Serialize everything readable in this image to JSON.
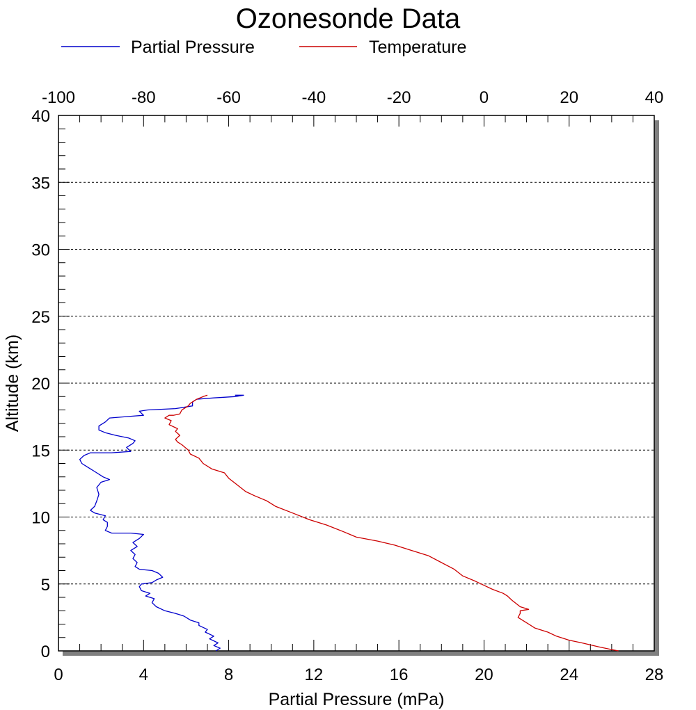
{
  "chart_data": {
    "type": "line",
    "title": "Ozonesonde Data",
    "xlabel": "Partial Pressure (mPa)",
    "ylabel": "Altitude (km)",
    "xlim": [
      0,
      28
    ],
    "x_ticks": [
      "0",
      "4",
      "8",
      "12",
      "16",
      "20",
      "24",
      "28"
    ],
    "x2lim": [
      -100,
      40
    ],
    "x2_ticks": [
      "-100",
      "-80",
      "-60",
      "-40",
      "-20",
      "0",
      "20",
      "40"
    ],
    "ylim": [
      0,
      40
    ],
    "y_ticks": [
      "0",
      "5",
      "10",
      "15",
      "20",
      "25",
      "30",
      "35",
      "40"
    ],
    "grid": "horizontal dotted",
    "legend_position": "top",
    "series": [
      {
        "name": "Partial Pressure",
        "color": "#0000cc",
        "axis": "bottom",
        "points": [
          [
            7.4,
            0.0
          ],
          [
            7.6,
            0.2
          ],
          [
            7.3,
            0.4
          ],
          [
            7.5,
            0.6
          ],
          [
            7.1,
            0.9
          ],
          [
            7.3,
            1.1
          ],
          [
            6.9,
            1.4
          ],
          [
            7.0,
            1.6
          ],
          [
            6.6,
            1.9
          ],
          [
            6.6,
            2.1
          ],
          [
            6.2,
            2.3
          ],
          [
            5.9,
            2.6
          ],
          [
            5.5,
            2.8
          ],
          [
            5.0,
            3.0
          ],
          [
            4.6,
            3.3
          ],
          [
            4.4,
            3.6
          ],
          [
            4.5,
            3.9
          ],
          [
            4.1,
            4.1
          ],
          [
            4.3,
            4.3
          ],
          [
            3.9,
            4.5
          ],
          [
            3.8,
            4.8
          ],
          [
            3.9,
            5.0
          ],
          [
            4.4,
            5.1
          ],
          [
            4.6,
            5.3
          ],
          [
            4.9,
            5.5
          ],
          [
            4.7,
            5.8
          ],
          [
            4.4,
            6.0
          ],
          [
            3.8,
            6.1
          ],
          [
            3.6,
            6.3
          ],
          [
            3.7,
            6.6
          ],
          [
            3.5,
            6.9
          ],
          [
            3.6,
            7.2
          ],
          [
            3.4,
            7.5
          ],
          [
            3.7,
            7.8
          ],
          [
            3.5,
            8.1
          ],
          [
            3.8,
            8.4
          ],
          [
            4.0,
            8.7
          ],
          [
            3.4,
            8.8
          ],
          [
            2.5,
            8.8
          ],
          [
            2.2,
            9.0
          ],
          [
            2.3,
            9.3
          ],
          [
            2.3,
            9.6
          ],
          [
            2.1,
            9.8
          ],
          [
            2.2,
            10.1
          ],
          [
            1.7,
            10.3
          ],
          [
            1.5,
            10.5
          ],
          [
            1.7,
            10.8
          ],
          [
            1.8,
            11.2
          ],
          [
            1.9,
            11.7
          ],
          [
            1.8,
            12.2
          ],
          [
            2.0,
            12.6
          ],
          [
            2.4,
            12.8
          ],
          [
            2.1,
            13.0
          ],
          [
            1.7,
            13.4
          ],
          [
            1.4,
            13.7
          ],
          [
            1.1,
            14.0
          ],
          [
            1.0,
            14.3
          ],
          [
            1.2,
            14.6
          ],
          [
            1.5,
            14.8
          ],
          [
            2.5,
            14.8
          ],
          [
            3.4,
            14.9
          ],
          [
            3.2,
            15.2
          ],
          [
            3.5,
            15.5
          ],
          [
            3.6,
            15.7
          ],
          [
            3.3,
            15.9
          ],
          [
            2.7,
            16.1
          ],
          [
            2.2,
            16.3
          ],
          [
            1.9,
            16.5
          ],
          [
            1.9,
            16.8
          ],
          [
            2.2,
            17.1
          ],
          [
            2.4,
            17.4
          ],
          [
            3.2,
            17.5
          ],
          [
            4.0,
            17.6
          ],
          [
            3.8,
            17.9
          ],
          [
            4.2,
            18.0
          ],
          [
            5.5,
            18.1
          ],
          [
            6.3,
            18.3
          ],
          [
            6.3,
            18.6
          ],
          [
            6.5,
            18.8
          ],
          [
            7.3,
            18.9
          ],
          [
            8.3,
            19.0
          ],
          [
            8.7,
            19.1
          ],
          [
            8.3,
            19.1
          ]
        ]
      },
      {
        "name": "Temperature",
        "color": "#cc0000",
        "axis": "top",
        "points": [
          [
            31.6,
            0.0
          ],
          [
            30,
            0.1
          ],
          [
            27,
            0.3
          ],
          [
            23,
            0.6
          ],
          [
            20,
            0.8
          ],
          [
            17,
            1.1
          ],
          [
            15,
            1.4
          ],
          [
            12,
            1.7
          ],
          [
            10,
            2.1
          ],
          [
            8,
            2.5
          ],
          [
            8.5,
            2.8
          ],
          [
            8.5,
            3.0
          ],
          [
            10.5,
            3.1
          ],
          [
            8.5,
            3.3
          ],
          [
            6.5,
            3.8
          ],
          [
            5.5,
            4.1
          ],
          [
            4.5,
            4.3
          ],
          [
            2,
            4.6
          ],
          [
            0,
            4.9
          ],
          [
            -2,
            5.2
          ],
          [
            -5,
            5.6
          ],
          [
            -7,
            6.1
          ],
          [
            -10,
            6.6
          ],
          [
            -13,
            7.1
          ],
          [
            -17,
            7.5
          ],
          [
            -21,
            7.9
          ],
          [
            -25,
            8.2
          ],
          [
            -30,
            8.5
          ],
          [
            -33,
            8.9
          ],
          [
            -37,
            9.4
          ],
          [
            -41,
            9.8
          ],
          [
            -45,
            10.3
          ],
          [
            -49,
            10.8
          ],
          [
            -51,
            11.2
          ],
          [
            -54,
            11.6
          ],
          [
            -56,
            11.9
          ],
          [
            -58,
            12.4
          ],
          [
            -60,
            12.9
          ],
          [
            -61,
            13.3
          ],
          [
            -64,
            13.6
          ],
          [
            -66,
            14.0
          ],
          [
            -67,
            14.4
          ],
          [
            -69,
            14.7
          ],
          [
            -69.5,
            15.0
          ],
          [
            -71,
            15.4
          ],
          [
            -72,
            15.6
          ],
          [
            -72.5,
            15.8
          ],
          [
            -71.5,
            16.1
          ],
          [
            -72.5,
            16.4
          ],
          [
            -72,
            16.6
          ],
          [
            -74,
            16.9
          ],
          [
            -73.5,
            17.2
          ],
          [
            -75,
            17.4
          ],
          [
            -74,
            17.6
          ],
          [
            -73,
            17.6
          ],
          [
            -71.5,
            17.7
          ],
          [
            -71,
            18.0
          ],
          [
            -70.5,
            18.1
          ],
          [
            -69.5,
            18.3
          ],
          [
            -69,
            18.5
          ],
          [
            -67.5,
            18.8
          ],
          [
            -66,
            19.0
          ],
          [
            -65,
            19.1
          ]
        ]
      }
    ]
  }
}
